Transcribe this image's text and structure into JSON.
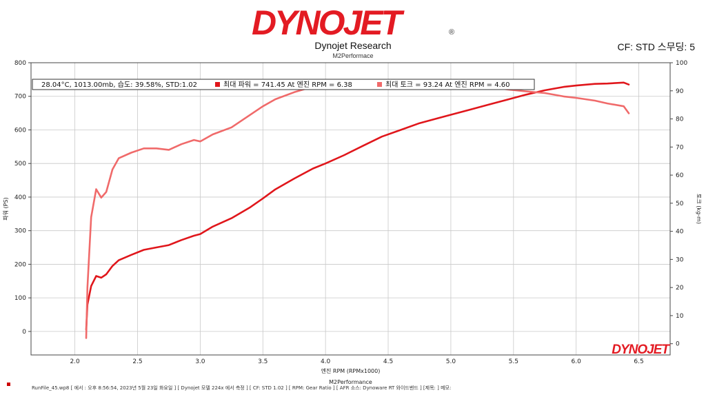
{
  "header": {
    "logo": "DYNOJET",
    "logo_mark": "®",
    "title": "Dynojet Research",
    "subtitle": "M2Performace",
    "cf_info": "CF: STD 스무딩: 5"
  },
  "legend": {
    "conditions": "28.04°C,  1013.00mb, 습도: 39.58%, STD:1.02",
    "power": "최대 파워 =  741.45 At 엔진 RPM = 6.38",
    "torque": "최대 토크 = 93.24 At 엔진 RPM = 4.60"
  },
  "watermark": "DYNOJET",
  "footer": {
    "text": "RunFile_45.wp8  [ 에서 : 오후 8:56:54, 2023년 5월 23일 화요일  ] [ Dynojet 모델 224x 에서 측정 ] [ CF: STD 1.02 ] [ RPM: Gear Ratio ] [ AFR 소스: Dynoware RT 와이드밴드 ] [제목: ] 메모:"
  },
  "colors": {
    "power": "#e0161b",
    "torque": "#f06a6a",
    "grid": "#c8c8c8",
    "axis": "#444444"
  },
  "chart_data": {
    "type": "line",
    "xlabel": "엔진 RPM (RPMx1000)",
    "xlabel_sub": "M2Performance",
    "ylabel_left": "파워 (PS)",
    "ylabel_right": "토크 (kg-m)",
    "xlim": [
      1.65,
      6.75
    ],
    "ylim_left": [
      -70,
      800
    ],
    "ylim_right": [
      -4,
      100
    ],
    "x_ticks": [
      "2.0",
      "2.5",
      "3.0",
      "3.5",
      "4.0",
      "4.5",
      "5.0",
      "5.5",
      "6.0",
      "6.5"
    ],
    "y_left_ticks": [
      "0",
      "100",
      "200",
      "300",
      "400",
      "500",
      "600",
      "700",
      "800"
    ],
    "y_right_ticks": [
      "0",
      "10",
      "20",
      "30",
      "40",
      "50",
      "60",
      "70",
      "80",
      "90",
      "100"
    ],
    "grid": true,
    "legend_position": "top",
    "series": [
      {
        "name": "파워",
        "axis": "left",
        "x": [
          2.09,
          2.1,
          2.13,
          2.17,
          2.21,
          2.25,
          2.3,
          2.35,
          2.45,
          2.55,
          2.65,
          2.75,
          2.85,
          2.95,
          3.0,
          3.1,
          3.25,
          3.4,
          3.5,
          3.6,
          3.75,
          3.9,
          4.0,
          4.15,
          4.3,
          4.45,
          4.6,
          4.75,
          4.9,
          5.0,
          5.15,
          5.3,
          5.45,
          5.6,
          5.75,
          5.9,
          6.0,
          6.15,
          6.25,
          6.38,
          6.42
        ],
        "y": [
          5,
          80,
          135,
          165,
          160,
          170,
          195,
          212,
          228,
          243,
          250,
          257,
          272,
          285,
          290,
          312,
          337,
          370,
          396,
          423,
          455,
          485,
          500,
          525,
          553,
          580,
          600,
          620,
          635,
          645,
          660,
          675,
          690,
          705,
          718,
          728,
          732,
          737,
          738,
          741,
          735
        ]
      },
      {
        "name": "토크",
        "axis": "right",
        "x": [
          2.09,
          2.1,
          2.13,
          2.17,
          2.21,
          2.25,
          2.3,
          2.35,
          2.45,
          2.55,
          2.65,
          2.75,
          2.85,
          2.95,
          3.0,
          3.1,
          3.25,
          3.4,
          3.5,
          3.6,
          3.75,
          3.9,
          4.0,
          4.15,
          4.3,
          4.45,
          4.6,
          4.75,
          4.9,
          5.0,
          5.15,
          5.3,
          5.45,
          5.6,
          5.75,
          5.9,
          6.0,
          6.15,
          6.25,
          6.38,
          6.42
        ],
        "y": [
          2,
          20,
          45,
          55,
          52,
          54,
          62,
          66,
          68,
          69.5,
          69.5,
          69,
          71,
          72.5,
          72,
          74.5,
          77,
          81.5,
          84.5,
          87,
          89.5,
          91.5,
          91.5,
          92.5,
          93,
          93.2,
          93.24,
          93,
          92.8,
          92.5,
          92,
          91.5,
          90.5,
          89.8,
          89.2,
          88,
          87.5,
          86.5,
          85.5,
          84.5,
          82
        ]
      }
    ]
  }
}
